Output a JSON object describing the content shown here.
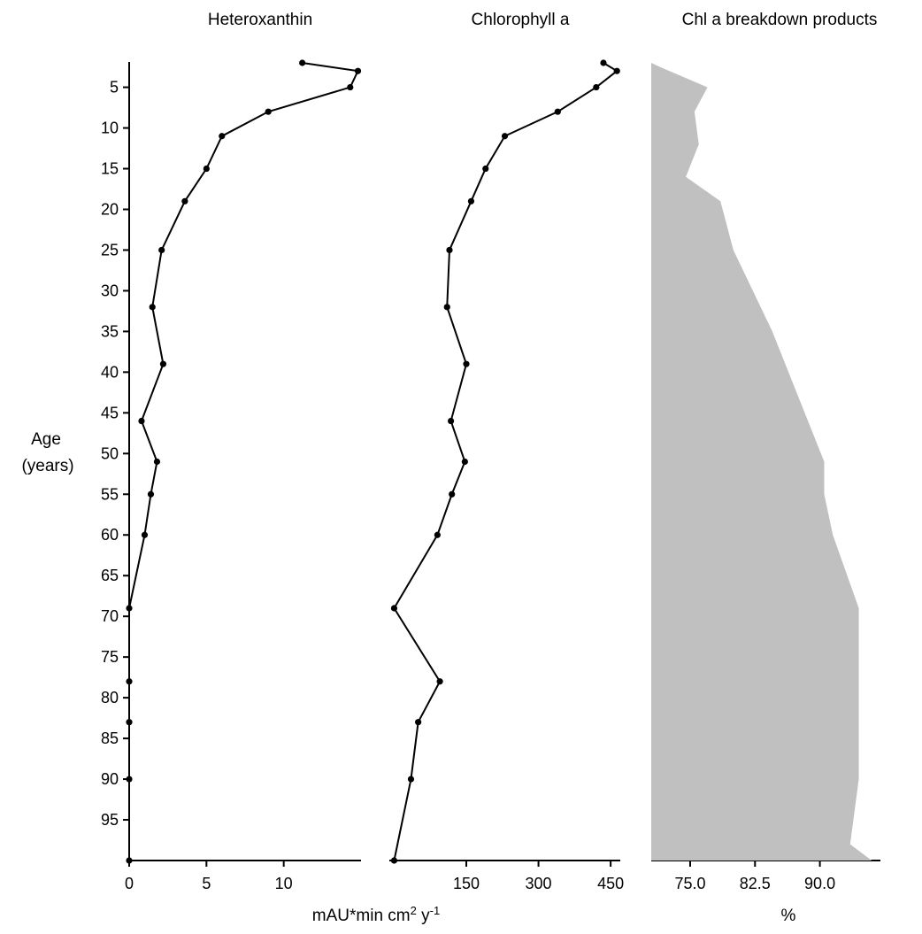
{
  "chart_data": [
    {
      "type": "line",
      "title": "Heteroxanthin",
      "orientation": "depth-profile",
      "x": [
        11.2,
        14.8,
        14.3,
        9.0,
        6.0,
        5.0,
        3.6,
        2.1,
        1.5,
        2.2,
        0.8,
        1.8,
        1.4,
        1.0,
        0.0,
        0.0,
        0.0,
        0.0,
        0.0
      ],
      "y": [
        2,
        3,
        5,
        8,
        11,
        15,
        19,
        25,
        32,
        39,
        46,
        51,
        55,
        60,
        69,
        78,
        83,
        90,
        100
      ],
      "xlim": [
        0,
        15
      ],
      "ylim": [
        2,
        100
      ],
      "xticks": [
        "0",
        "5",
        "10"
      ],
      "xtick_values": [
        0,
        5,
        10
      ],
      "grid": false
    },
    {
      "type": "line",
      "title": "Chlorophyll a",
      "orientation": "depth-profile",
      "x": [
        435,
        463,
        420,
        340,
        230,
        190,
        160,
        115,
        110,
        150,
        118,
        147,
        120,
        90,
        0,
        95,
        50,
        35,
        0
      ],
      "y": [
        2,
        3,
        5,
        8,
        11,
        15,
        19,
        25,
        32,
        39,
        46,
        51,
        55,
        60,
        69,
        78,
        83,
        90,
        100
      ],
      "xlim": [
        -10,
        470
      ],
      "ylim": [
        2,
        100
      ],
      "xticks": [
        "150",
        "300",
        "450"
      ],
      "xtick_values": [
        150,
        300,
        450
      ],
      "grid": false
    },
    {
      "type": "area",
      "title": "Chl a breakdown products",
      "orientation": "depth-profile",
      "x": [
        70.5,
        71.5,
        77.0,
        75.5,
        76.0,
        74.5,
        78.5,
        80.0,
        84.5,
        90.5,
        90.5,
        91.5,
        94.5,
        94.5,
        94.5,
        93.5,
        96.0
      ],
      "y": [
        2,
        2.5,
        5,
        8,
        12,
        16,
        19,
        25,
        35,
        51,
        55,
        60,
        69,
        83,
        90,
        98,
        100
      ],
      "xlim": [
        70.5,
        97.0
      ],
      "ylim": [
        2,
        100
      ],
      "xticks": [
        "75.0",
        "82.5",
        "90.0"
      ],
      "xtick_values": [
        75.0,
        82.5,
        90.0
      ],
      "xlabel": "%",
      "grid": false
    }
  ],
  "y_axis": {
    "label_line1": "Age",
    "label_line2": "(years)",
    "ticks": [
      "5",
      "10",
      "15",
      "20",
      "25",
      "30",
      "35",
      "40",
      "45",
      "50",
      "55",
      "60",
      "65",
      "70",
      "75",
      "80",
      "85",
      "90",
      "95"
    ],
    "tick_values": [
      5,
      10,
      15,
      20,
      25,
      30,
      35,
      40,
      45,
      50,
      55,
      60,
      65,
      70,
      75,
      80,
      85,
      90,
      95
    ]
  },
  "shared_xlabel": "mAU*min cm",
  "shared_xlabel_sup1": "2",
  "shared_xlabel_mid": " y",
  "shared_xlabel_sup2": "-1",
  "colors": {
    "line": "#000000",
    "fill": "#c0c0c0"
  }
}
